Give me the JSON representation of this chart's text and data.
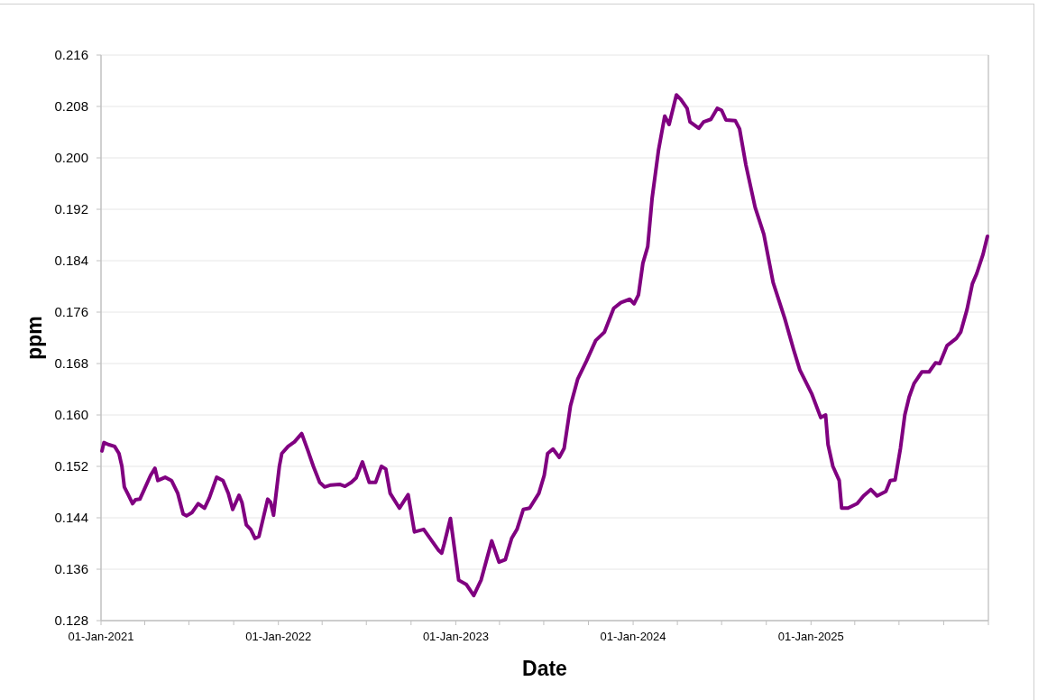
{
  "chart_data": {
    "type": "line",
    "xlabel": "Date",
    "ylabel": "ppm",
    "grid": "y",
    "marker": "none",
    "line_style": "solid",
    "xlim": [
      "2021-01-01",
      "2026-01-01"
    ],
    "xticks": [
      {
        "value": "2021-01-01",
        "label": "01-Jan-2021"
      },
      {
        "value": "2021-04-01",
        "label": null
      },
      {
        "value": "2021-07-01",
        "label": null
      },
      {
        "value": "2021-10-01",
        "label": null
      },
      {
        "value": "2022-01-01",
        "label": "01-Jan-2022"
      },
      {
        "value": "2022-04-01",
        "label": null
      },
      {
        "value": "2022-07-01",
        "label": null
      },
      {
        "value": "2022-10-01",
        "label": null
      },
      {
        "value": "2023-01-01",
        "label": "01-Jan-2023"
      },
      {
        "value": "2023-04-01",
        "label": null
      },
      {
        "value": "2023-07-01",
        "label": null
      },
      {
        "value": "2023-10-01",
        "label": null
      },
      {
        "value": "2024-01-01",
        "label": "01-Jan-2024"
      },
      {
        "value": "2024-04-01",
        "label": null
      },
      {
        "value": "2024-07-01",
        "label": null
      },
      {
        "value": "2024-10-01",
        "label": null
      },
      {
        "value": "2025-01-01",
        "label": "01-Jan-2025"
      },
      {
        "value": "2025-04-01",
        "label": null
      },
      {
        "value": "2025-07-01",
        "label": null
      },
      {
        "value": "2025-10-01",
        "label": null
      },
      {
        "value": "2026-01-01",
        "label": null
      }
    ],
    "ylim": [
      0.128,
      0.216
    ],
    "yticks": [
      0.128,
      0.136,
      0.144,
      0.152,
      {
        "value": 0.16,
        "label": "0.160"
      },
      0.168,
      0.176,
      0.184,
      0.192,
      {
        "value": 0.2,
        "label": "0.200"
      },
      0.208,
      0.216
    ],
    "series": [
      {
        "color": "#800080",
        "x": [
          "2021-01-03",
          "2021-01-07",
          "2021-01-16",
          "2021-01-29",
          "2021-02-07",
          "2021-02-13",
          "2021-02-18",
          "2021-02-26",
          "2021-03-07",
          "2021-03-13",
          "2021-03-22",
          "2021-03-31",
          "2021-04-13",
          "2021-04-22",
          "2021-04-28",
          "2021-05-13",
          "2021-05-26",
          "2021-06-08",
          "2021-06-19",
          "2021-06-26",
          "2021-07-07",
          "2021-07-20",
          "2021-08-02",
          "2021-08-12",
          "2021-08-27",
          "2021-09-09",
          "2021-09-20",
          "2021-09-29",
          "2021-10-12",
          "2021-10-18",
          "2021-10-27",
          "2021-11-05",
          "2021-11-14",
          "2021-11-22",
          "2021-12-10",
          "2021-12-16",
          "2021-12-22",
          "2022-01-03",
          "2022-01-08",
          "2022-01-21",
          "2022-02-03",
          "2022-02-18",
          "2022-03-03",
          "2022-03-14",
          "2022-03-27",
          "2022-04-06",
          "2022-04-19",
          "2022-05-07",
          "2022-05-18",
          "2022-05-31",
          "2022-06-10",
          "2022-06-23",
          "2022-07-07",
          "2022-07-20",
          "2022-08-01",
          "2022-08-10",
          "2022-08-19",
          "2022-09-07",
          "2022-09-25",
          "2022-10-08",
          "2022-10-27",
          "2022-11-27",
          "2022-12-03",
          "2022-12-08",
          "2022-12-21",
          "2023-01-07",
          "2023-01-23",
          "2023-02-07",
          "2023-02-22",
          "2023-03-16",
          "2023-03-31",
          "2023-04-13",
          "2023-04-26",
          "2023-05-07",
          "2023-05-20",
          "2023-06-02",
          "2023-06-21",
          "2023-07-02",
          "2023-07-09",
          "2023-07-20",
          "2023-08-02",
          "2023-08-12",
          "2023-08-25",
          "2023-09-09",
          "2023-09-27",
          "2023-10-16",
          "2023-11-03",
          "2023-11-22",
          "2023-12-07",
          "2023-12-25",
          "2024-01-03",
          "2024-01-12",
          "2024-01-21",
          "2024-01-31",
          "2024-02-09",
          "2024-02-22",
          "2024-03-06",
          "2024-03-15",
          "2024-03-30",
          "2024-04-08",
          "2024-04-21",
          "2024-04-27",
          "2024-05-15",
          "2024-05-25",
          "2024-06-09",
          "2024-06-22",
          "2024-07-01",
          "2024-07-10",
          "2024-07-29",
          "2024-08-07",
          "2024-08-20",
          "2024-09-08",
          "2024-09-26",
          "2024-10-15",
          "2024-11-08",
          "2024-11-26",
          "2024-12-09",
          "2025-01-03",
          "2025-01-21",
          "2025-01-31",
          "2025-02-05",
          "2025-02-15",
          "2025-02-28",
          "2025-03-05",
          "2025-03-18",
          "2025-04-06",
          "2025-04-19",
          "2025-05-04",
          "2025-05-17",
          "2025-06-04",
          "2025-06-13",
          "2025-06-23",
          "2025-07-04",
          "2025-07-13",
          "2025-07-22",
          "2025-08-01",
          "2025-08-17",
          "2025-09-01",
          "2025-09-14",
          "2025-09-23",
          "2025-10-08",
          "2025-10-27",
          "2025-11-05",
          "2025-11-18",
          "2025-11-29",
          "2025-12-08",
          "2025-12-21",
          "2025-12-30"
        ],
        "values": [
          0.1544,
          0.1557,
          0.1554,
          0.1551,
          0.154,
          0.152,
          0.1488,
          0.1476,
          0.1462,
          0.1468,
          0.1469,
          0.1484,
          0.1506,
          0.1517,
          0.1498,
          0.1503,
          0.1498,
          0.1478,
          0.1446,
          0.1443,
          0.1448,
          0.1462,
          0.1455,
          0.1471,
          0.1503,
          0.1498,
          0.1478,
          0.1453,
          0.1475,
          0.1464,
          0.1429,
          0.1422,
          0.1408,
          0.1411,
          0.1469,
          0.1464,
          0.1444,
          0.152,
          0.154,
          0.1551,
          0.1558,
          0.1571,
          0.1544,
          0.152,
          0.1495,
          0.1488,
          0.1491,
          0.1492,
          0.1489,
          0.1495,
          0.1502,
          0.1527,
          0.1495,
          0.1495,
          0.152,
          0.1516,
          0.1478,
          0.1455,
          0.1476,
          0.1418,
          0.1422,
          0.1389,
          0.1385,
          0.1399,
          0.1439,
          0.1343,
          0.1336,
          0.1319,
          0.1343,
          0.1404,
          0.1371,
          0.1375,
          0.1408,
          0.1422,
          0.1453,
          0.1455,
          0.1478,
          0.1506,
          0.154,
          0.1547,
          0.1534,
          0.1548,
          0.1614,
          0.1656,
          0.1684,
          0.1716,
          0.1729,
          0.1766,
          0.1775,
          0.178,
          0.1773,
          0.1787,
          0.1836,
          0.1862,
          0.1937,
          0.2011,
          0.2065,
          0.2052,
          0.2098,
          0.2091,
          0.2077,
          0.2056,
          0.2046,
          0.2056,
          0.206,
          0.2077,
          0.2074,
          0.2059,
          0.2058,
          0.2045,
          0.1989,
          0.1923,
          0.1881,
          0.1806,
          0.175,
          0.1702,
          0.167,
          0.1632,
          0.1596,
          0.16,
          0.1554,
          0.152,
          0.1498,
          0.1455,
          0.1455,
          0.1462,
          0.1474,
          0.1484,
          0.1474,
          0.1481,
          0.1498,
          0.1499,
          0.1548,
          0.16,
          0.1628,
          0.1649,
          0.1667,
          0.1667,
          0.1681,
          0.168,
          0.1708,
          0.1719,
          0.1729,
          0.1764,
          0.1804,
          0.182,
          0.185,
          0.1878
        ]
      }
    ]
  }
}
